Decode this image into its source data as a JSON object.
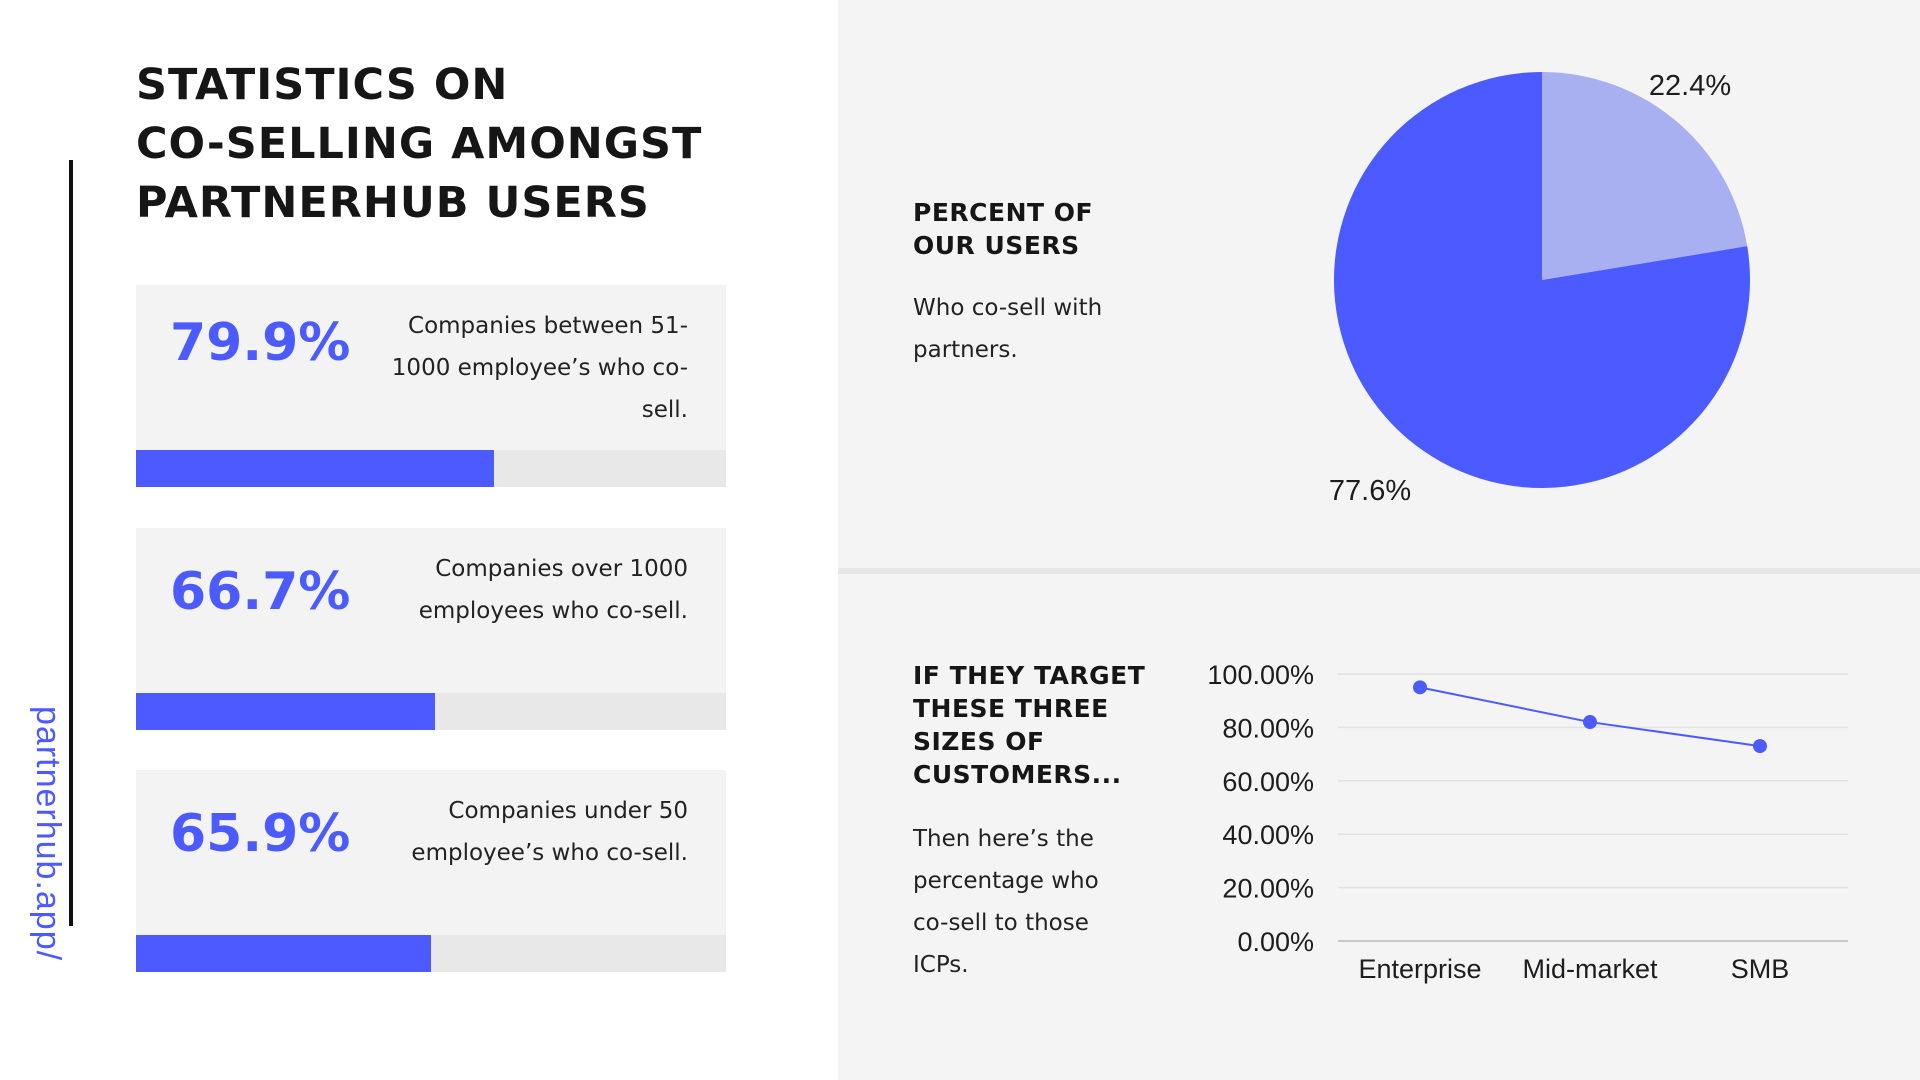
{
  "site_url": "partnerhub.app/",
  "title": "STATISTICS ON\nCO-SELLING AMONGST\nPARTNERHUB USERS",
  "stats": [
    {
      "value": "79.9%",
      "description": "Companies between 51-1000 employee’s who co-sell.",
      "percent": 79.9
    },
    {
      "value": "66.7%",
      "description": "Companies over 1000 employees who co-sell.",
      "percent": 66.7
    },
    {
      "value": "65.9%",
      "description": "Companies under 50 employee’s who co-sell.",
      "percent": 65.9
    }
  ],
  "pie_section": {
    "heading": "PERCENT OF OUR USERS",
    "text": "Who co-sell with partners."
  },
  "line_section": {
    "heading": "IF THEY TARGET THESE THREE SIZES OF CUSTOMERS...",
    "text": "Then here’s the percentage who co-sell to those ICPs."
  },
  "colors": {
    "accent": "#4b5bff",
    "accent_light": "#a9b0f2",
    "bar_track": "#e8e8e8"
  },
  "chart_data": [
    {
      "type": "pie",
      "labels": [
        "22.4%",
        "77.6%"
      ],
      "values": [
        22.4,
        77.6
      ],
      "colors": [
        "#a9b0f2",
        "#4b5bff"
      ]
    },
    {
      "type": "line",
      "categories": [
        "Enterprise",
        "Mid-market",
        "SMB"
      ],
      "series": [
        {
          "values": [
            95,
            82,
            73
          ]
        }
      ],
      "ylim": [
        0,
        100
      ],
      "yticks": [
        "0.00%",
        "20.00%",
        "40.00%",
        "60.00%",
        "80.00%",
        "100.00%"
      ],
      "grid": true
    }
  ]
}
